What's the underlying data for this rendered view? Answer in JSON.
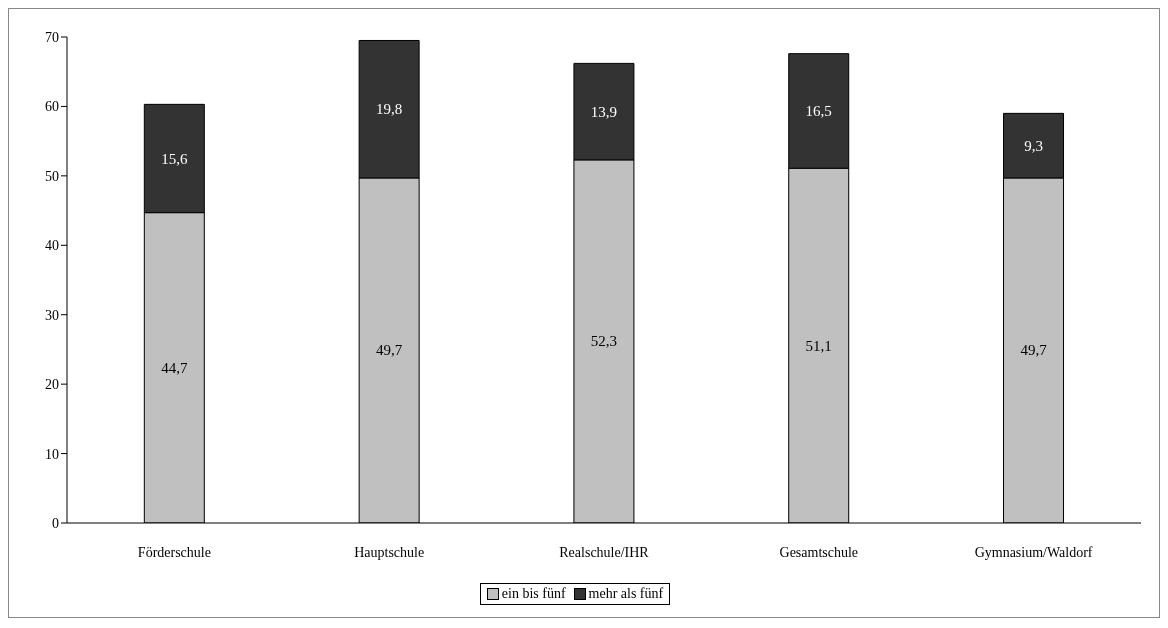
{
  "chart_data": {
    "type": "bar",
    "stacked": true,
    "categories": [
      "Förderschule",
      "Hauptschule",
      "Realschule/IHR",
      "Gesamtschule",
      "Gymnasium/Waldorf"
    ],
    "series": [
      {
        "name": "ein bis fünf",
        "color": "#c0c0c0",
        "values": [
          44.7,
          49.7,
          52.3,
          51.1,
          49.7
        ],
        "value_labels": [
          "44,7",
          "49,7",
          "52,3",
          "51,1",
          "49,7"
        ]
      },
      {
        "name": "mehr als fünf",
        "color": "#333333",
        "values": [
          15.6,
          19.8,
          13.9,
          16.5,
          9.3
        ],
        "value_labels": [
          "15,6",
          "19,8",
          "13,9",
          "16,5",
          "9,3"
        ]
      }
    ],
    "ylim": [
      0,
      70
    ],
    "yticks": [
      0,
      10,
      20,
      30,
      40,
      50,
      60,
      70
    ],
    "grid": false,
    "legend": "bottom"
  }
}
